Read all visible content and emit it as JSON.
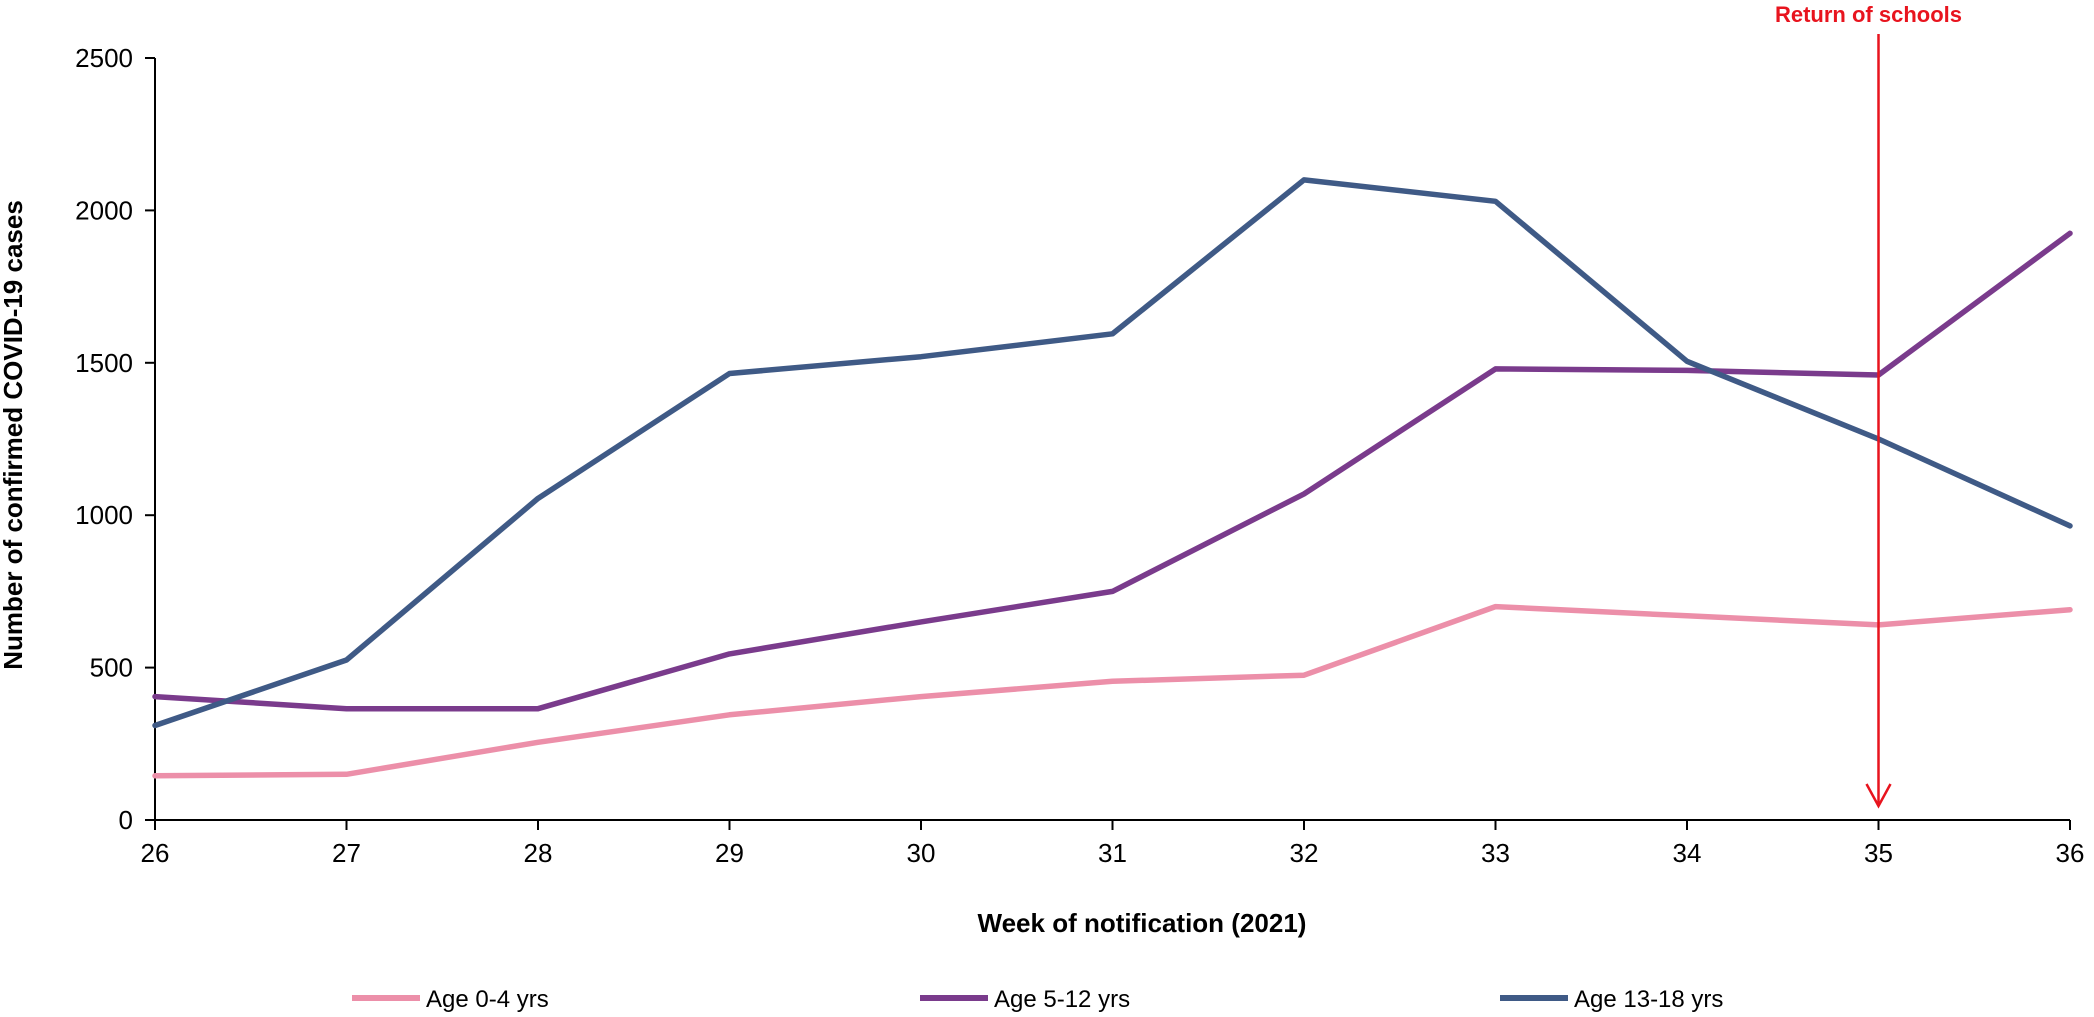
{
  "chart_data": {
    "type": "line",
    "x": [
      26,
      27,
      28,
      29,
      30,
      31,
      32,
      33,
      34,
      35,
      36
    ],
    "xlabel": "Week of notification (2021)",
    "ylabel": "Number of confirmed COVID-19 cases",
    "xlim": [
      26,
      36
    ],
    "ylim": [
      0,
      2500
    ],
    "yticks": [
      0,
      500,
      1000,
      1500,
      2000,
      2500
    ],
    "xticks": [
      26,
      27,
      28,
      29,
      30,
      31,
      32,
      33,
      34,
      35,
      36
    ],
    "grid": false,
    "legend": "bottom",
    "series": [
      {
        "name": "Age 0-4 yrs",
        "color": "#ec8fa9",
        "values": [
          145,
          150,
          255,
          345,
          405,
          455,
          475,
          700,
          670,
          640,
          690
        ]
      },
      {
        "name": "Age 5-12 yrs",
        "color": "#7a3b8c",
        "values": [
          405,
          365,
          365,
          545,
          650,
          750,
          1070,
          1480,
          1475,
          1460,
          1925
        ]
      },
      {
        "name": "Age 13-18 yrs",
        "color": "#3f5a86",
        "values": [
          310,
          525,
          1055,
          1465,
          1520,
          1595,
          2100,
          2030,
          1505,
          1250,
          965
        ]
      }
    ],
    "annotations": [
      {
        "label": "Return of schools",
        "x": 35,
        "color": "#e8141e"
      }
    ]
  }
}
